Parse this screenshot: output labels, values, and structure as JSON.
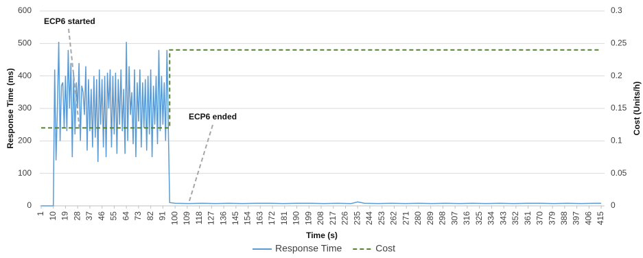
{
  "chart_data": {
    "type": "line",
    "x_label": "Time (s)",
    "y_label": "Response Time (ms)",
    "y2_label": "Cost (Units/h)",
    "xlim": [
      0,
      417
    ],
    "xticks": [
      1,
      10,
      19,
      28,
      37,
      46,
      55,
      64,
      73,
      82,
      91,
      100,
      109,
      118,
      127,
      136,
      145,
      154,
      163,
      172,
      181,
      190,
      199,
      208,
      217,
      226,
      235,
      244,
      253,
      262,
      271,
      280,
      289,
      298,
      307,
      316,
      325,
      334,
      343,
      352,
      361,
      370,
      379,
      388,
      397,
      406,
      415
    ],
    "ylim": [
      0,
      600
    ],
    "yticks": [
      0,
      100,
      200,
      300,
      400,
      500,
      600
    ],
    "y2lim": [
      0,
      0.3
    ],
    "y2ticks": [
      0,
      0.05,
      0.1,
      0.15,
      0.2,
      0.25,
      0.3
    ],
    "grid": true,
    "legend": "bottom",
    "annotations": [
      "ECP6 started",
      "ECP6 ended"
    ],
    "x": [
      1,
      10,
      11,
      12,
      13,
      14,
      15,
      16,
      17,
      18,
      19,
      20,
      21,
      22,
      23,
      24,
      25,
      26,
      27,
      28,
      29,
      30,
      31,
      32,
      33,
      34,
      35,
      36,
      37,
      38,
      39,
      40,
      41,
      42,
      43,
      44,
      45,
      46,
      47,
      48,
      49,
      50,
      51,
      52,
      53,
      54,
      55,
      56,
      57,
      58,
      59,
      60,
      61,
      62,
      63,
      64,
      65,
      66,
      67,
      68,
      69,
      70,
      71,
      72,
      73,
      74,
      75,
      76,
      77,
      78,
      79,
      80,
      81,
      82,
      83,
      84,
      85,
      86,
      87,
      88,
      89,
      90,
      91,
      92,
      93,
      94,
      95,
      96,
      100,
      110,
      120,
      130,
      140,
      150,
      160,
      170,
      180,
      190,
      200,
      210,
      220,
      230,
      235,
      240,
      250,
      260,
      270,
      280,
      290,
      300,
      310,
      320,
      330,
      340,
      350,
      360,
      370,
      380,
      390,
      400,
      410,
      415
    ],
    "series": [
      {
        "name": "Response Time",
        "color": "#5b9bd5",
        "style": "solid",
        "axis": "y",
        "values": [
          0,
          0,
          420,
          140,
          300,
          505,
          200,
          370,
          380,
          240,
          400,
          230,
          480,
          300,
          440,
          150,
          410,
          220,
          380,
          300,
          440,
          200,
          370,
          350,
          280,
          430,
          170,
          390,
          230,
          360,
          180,
          400,
          210,
          390,
          135,
          420,
          250,
          390,
          180,
          400,
          150,
          410,
          300,
          420,
          180,
          400,
          220,
          410,
          160,
          390,
          250,
          420,
          230,
          360,
          160,
          505,
          200,
          430,
          280,
          350,
          190,
          420,
          150,
          380,
          260,
          420,
          180,
          380,
          240,
          390,
          170,
          400,
          220,
          420,
          150,
          370,
          250,
          400,
          190,
          480,
          230,
          400,
          250,
          380,
          200,
          480,
          240,
          10,
          8,
          7,
          8,
          7,
          8,
          7,
          8,
          8,
          7,
          8,
          8,
          7,
          8,
          7,
          12,
          8,
          7,
          8,
          7,
          8,
          7,
          8,
          7,
          8,
          7,
          8,
          7,
          8,
          8,
          7,
          8,
          7,
          8,
          8
        ]
      },
      {
        "name": "Cost",
        "color": "#548235",
        "style": "dashed",
        "axis": "y2",
        "values": [
          0.12,
          0.12,
          0.12,
          0.12,
          0.12,
          0.12,
          0.12,
          0.12,
          0.12,
          0.12,
          0.12,
          0.12,
          0.12,
          0.12,
          0.12,
          0.12,
          0.12,
          0.12,
          0.12,
          0.12,
          0.12,
          0.12,
          0.12,
          0.12,
          0.12,
          0.12,
          0.12,
          0.12,
          0.12,
          0.12,
          0.12,
          0.12,
          0.12,
          0.12,
          0.12,
          0.12,
          0.12,
          0.12,
          0.12,
          0.12,
          0.12,
          0.12,
          0.12,
          0.12,
          0.12,
          0.12,
          0.12,
          0.12,
          0.12,
          0.12,
          0.12,
          0.12,
          0.12,
          0.12,
          0.12,
          0.12,
          0.12,
          0.12,
          0.12,
          0.12,
          0.12,
          0.12,
          0.12,
          0.12,
          0.12,
          0.12,
          0.12,
          0.12,
          0.12,
          0.12,
          0.12,
          0.12,
          0.12,
          0.12,
          0.12,
          0.12,
          0.12,
          0.12,
          0.12,
          0.12,
          0.12,
          0.12,
          0.12,
          0.12,
          0.12,
          0.12,
          0.12,
          0.24,
          0.24,
          0.24,
          0.24,
          0.24,
          0.24,
          0.24,
          0.24,
          0.24,
          0.24,
          0.24,
          0.24,
          0.24,
          0.24,
          0.24,
          0.24,
          0.24,
          0.24,
          0.24,
          0.24,
          0.24,
          0.24,
          0.24,
          0.24,
          0.24,
          0.24,
          0.24,
          0.24,
          0.24,
          0.24,
          0.24,
          0.24,
          0.24,
          0.24,
          0.24
        ]
      }
    ]
  }
}
